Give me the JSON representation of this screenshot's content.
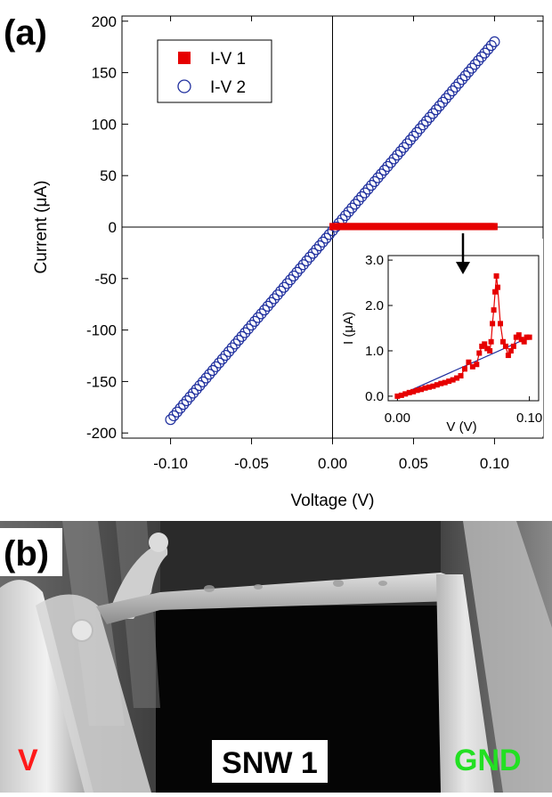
{
  "panel_a_label": "(a)",
  "panel_b_label": "(b)",
  "colors": {
    "iv1": "#e60000",
    "iv2": "#1f2f9e",
    "label_v": "#ff1a1a",
    "label_gnd": "#22e022"
  },
  "chart_data": [
    {
      "type": "scatter",
      "title": "",
      "xlabel": "Voltage (V)",
      "ylabel": "Current (μA)",
      "xlim": [
        -0.13,
        0.13
      ],
      "ylim": [
        -205,
        205
      ],
      "xticks": [
        -0.1,
        -0.05,
        0.0,
        0.05,
        0.1
      ],
      "xtick_labels": [
        "-0.10",
        "-0.05",
        "0.00",
        "0.05",
        "0.10"
      ],
      "yticks": [
        -200,
        -150,
        -100,
        -50,
        0,
        50,
        100,
        150,
        200
      ],
      "ytick_labels": [
        "-200",
        "-150",
        "-100",
        "-50",
        "0",
        "50",
        "100",
        "150",
        "200"
      ],
      "grid": false,
      "legend": "top-left",
      "series": [
        {
          "name": "I-V 1",
          "marker": "filled-square",
          "x_range": [
            0.0,
            0.1
          ],
          "n_points": 100,
          "y_approx": 0.5
        },
        {
          "name": "I-V 2",
          "marker": "open-circle",
          "x_range": [
            -0.1,
            0.1
          ],
          "n_points": 101,
          "y_start": -187,
          "y_end": 180
        }
      ]
    },
    {
      "type": "line",
      "title": "",
      "xlabel": "V (V)",
      "ylabel": "I (μA)",
      "xlim": [
        -0.007,
        0.107
      ],
      "ylim": [
        -0.1,
        3.1
      ],
      "xticks": [
        0.0,
        0.1
      ],
      "xtick_labels": [
        "0.00",
        "0.10"
      ],
      "yticks": [
        0.0,
        1.0,
        2.0,
        3.0
      ],
      "ytick_labels": [
        "0.0",
        "1.0",
        "2.0",
        "3.0"
      ],
      "series": [
        {
          "name": "",
          "marker": "filled-square",
          "x": [
            0.0,
            0.003,
            0.006,
            0.009,
            0.012,
            0.015,
            0.018,
            0.021,
            0.024,
            0.027,
            0.03,
            0.033,
            0.036,
            0.039,
            0.042,
            0.045,
            0.048,
            0.051,
            0.054,
            0.057,
            0.06,
            0.062,
            0.064,
            0.066,
            0.068,
            0.07,
            0.071,
            0.072,
            0.073,
            0.074,
            0.075,
            0.076,
            0.078,
            0.08,
            0.082,
            0.084,
            0.086,
            0.088,
            0.09,
            0.092,
            0.094,
            0.096,
            0.098,
            0.1
          ],
          "y": [
            0.0,
            0.02,
            0.05,
            0.08,
            0.1,
            0.13,
            0.15,
            0.18,
            0.2,
            0.22,
            0.25,
            0.28,
            0.3,
            0.33,
            0.36,
            0.4,
            0.45,
            0.6,
            0.75,
            0.65,
            0.7,
            0.95,
            1.1,
            1.15,
            1.05,
            1.0,
            1.2,
            1.6,
            1.9,
            2.3,
            2.65,
            2.4,
            1.6,
            1.2,
            1.1,
            0.9,
            1.0,
            1.1,
            1.3,
            1.35,
            1.25,
            1.2,
            1.3,
            1.3
          ]
        },
        {
          "name": "",
          "marker": "none",
          "x": [
            0.0,
            0.1
          ],
          "y": [
            0.0,
            1.3
          ]
        }
      ],
      "annotation": "arrow-from-main-trace"
    }
  ],
  "sem_labels": {
    "left": "V",
    "center": "SNW 1",
    "right": "GND"
  }
}
